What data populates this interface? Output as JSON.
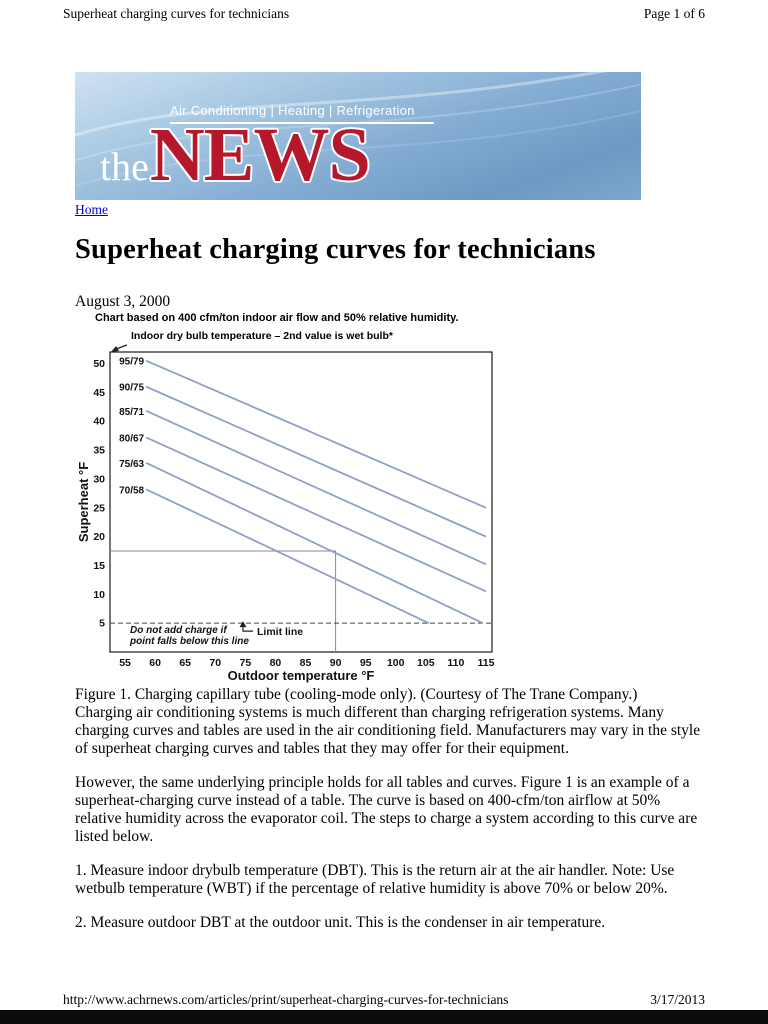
{
  "page": {
    "header": {
      "title": "Superheat charging curves for technicians",
      "page_indicator": "Page 1 of 6"
    },
    "banner": {
      "tagline": "Air Conditioning | Heating | Refrigeration",
      "logo_the": "the",
      "logo_news": "NEWS",
      "news_color": "#b5182b"
    },
    "nav": {
      "home_link": "Home"
    },
    "article": {
      "title": "Superheat charging curves for technicians",
      "date": "August 3, 2000",
      "figure_caption": "Figure 1. Charging capillary tube (cooling-mode only). (Courtesy of The Trane Company.)",
      "paragraphs": [
        "Charging air conditioning systems is much different than charging refrigeration systems. Many charging curves and tables are used in the air conditioning field. Manufacturers may vary in the style of superheat charging curves and tables that they may offer for their equipment.",
        "However, the same underlying principle holds for all tables and curves. Figure 1 is an example of a superheat-charging curve instead of a table. The curve is based on 400-cfm/ton airflow at 50% relative humidity across the evaporator coil. The steps to charge a system according to this curve are listed below.",
        "1. Measure indoor drybulb temperature (DBT). This is the return air at the air handler. Note: Use wetbulb temperature (WBT) if the percentage of relative humidity is above 70% or below 20%.",
        "2. Measure outdoor DBT at the outdoor unit. This is the condenser in air temperature."
      ]
    },
    "footer": {
      "url": "http://www.achrnews.com/articles/print/superheat-charging-curves-for-technicians",
      "date": "3/17/2013"
    }
  },
  "chart_data": {
    "type": "line",
    "title": "Chart based on 400 cfm/ton indoor air flow and 50% relative humidity.",
    "annotation": "Indoor dry bulb temperature – 2nd value is wet bulb*",
    "xlabel": "Outdoor temperature °F",
    "ylabel": "Superheat °F",
    "xlim": [
      52.5,
      116
    ],
    "ylim": [
      0,
      52
    ],
    "xticks": [
      55,
      60,
      65,
      70,
      75,
      80,
      85,
      90,
      95,
      100,
      105,
      110,
      115
    ],
    "yticks": [
      5,
      10,
      15,
      20,
      25,
      30,
      35,
      40,
      45,
      50
    ],
    "grid": false,
    "legend_position": "labels-at-line-start",
    "line_color": "#8ea0c9",
    "series": [
      {
        "name": "95/79",
        "points": [
          [
            58.5,
            50.5
          ],
          [
            115,
            25
          ]
        ]
      },
      {
        "name": "90/75",
        "points": [
          [
            58.5,
            46.0
          ],
          [
            115,
            20
          ]
        ]
      },
      {
        "name": "85/71",
        "points": [
          [
            58.5,
            41.8
          ],
          [
            115,
            15.2
          ]
        ]
      },
      {
        "name": "80/67",
        "points": [
          [
            58.5,
            37.2
          ],
          [
            115,
            10.5
          ]
        ]
      },
      {
        "name": "75/63",
        "points": [
          [
            58.5,
            32.8
          ],
          [
            114.5,
            5
          ]
        ]
      },
      {
        "name": "70/58",
        "points": [
          [
            58.5,
            28.2
          ],
          [
            105.5,
            5
          ]
        ]
      }
    ],
    "limit_line": {
      "y": 5,
      "label": "Limit line",
      "note_lines": [
        "Do not add charge if",
        "point falls below this line"
      ]
    },
    "example_guide": {
      "x": 90,
      "y": 17.5
    }
  }
}
